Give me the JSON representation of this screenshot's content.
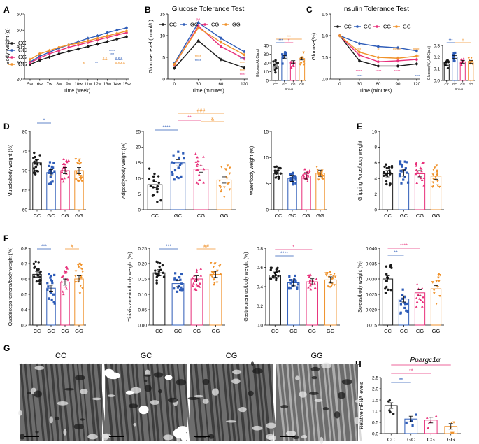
{
  "colors": {
    "CC": "#1a1a1a",
    "GC": "#2e5cb8",
    "CG": "#e8307a",
    "GG": "#f0922b"
  },
  "chart_data": [
    {
      "panel": "A",
      "type": "line",
      "title": "",
      "xlabel": "Time (week)",
      "ylabel": "Body weight (g)",
      "x": [
        "5w",
        "6w",
        "7w",
        "8w",
        "9w",
        "10w",
        "11w",
        "12w",
        "13w",
        "14w",
        "15w"
      ],
      "ylim": [
        20,
        60
      ],
      "yticks": [
        "20",
        "30",
        "40",
        "50",
        "60"
      ],
      "legend": [
        "CC",
        "GC",
        "CG",
        "GG"
      ],
      "series": [
        {
          "name": "CC",
          "values": [
            29,
            31.5,
            33.5,
            35.5,
            37,
            38.5,
            40,
            41.5,
            43,
            44.5,
            46
          ]
        },
        {
          "name": "GC",
          "values": [
            30.5,
            34,
            36.5,
            39,
            41,
            43,
            45,
            46.5,
            48.5,
            50,
            51.5
          ]
        },
        {
          "name": "CG",
          "values": [
            30,
            33,
            35.5,
            37.5,
            39.5,
            41,
            42.5,
            44,
            45.5,
            47,
            48.5
          ]
        },
        {
          "name": "GG",
          "values": [
            32,
            35.5,
            37.5,
            39.5,
            41,
            42,
            43.5,
            45,
            46.5,
            48,
            49.5
          ]
        }
      ],
      "annotations": [
        "****",
        "&",
        "&&&",
        "&&",
        "&&&&",
        "**",
        "***"
      ]
    },
    {
      "panel": "B",
      "type": "line",
      "title": "Glucose Tolerance Test",
      "xlabel": "Time (minutes)",
      "ylabel": "Glucose level (mmol/L)",
      "x": [
        "0",
        "30",
        "60",
        "120"
      ],
      "ylim": [
        0,
        15
      ],
      "yticks": [
        "0",
        "5",
        "10",
        "15"
      ],
      "legend": [
        "CC",
        "GC",
        "CG",
        "GG"
      ],
      "series": [
        {
          "name": "CC",
          "values": [
            2.5,
            8.8,
            4.5,
            2.6
          ]
        },
        {
          "name": "GC",
          "values": [
            3.6,
            13,
            9.4,
            6.3
          ]
        },
        {
          "name": "CG",
          "values": [
            3.2,
            12.2,
            7.5,
            4.7
          ]
        },
        {
          "name": "GG",
          "values": [
            3.4,
            11.8,
            8.5,
            5.6
          ]
        }
      ],
      "annotations": [
        "##",
        "****",
        "****",
        "****",
        "****",
        "****",
        "****"
      ]
    },
    {
      "panel": "B-inset",
      "type": "bar",
      "ylabel": "Glucose,AUC(a.u)",
      "xlabel": "Group",
      "categories": [
        "CC",
        "GC",
        "CG",
        "GG"
      ],
      "values": [
        16,
        27,
        21,
        25
      ],
      "ylim": [
        0,
        40
      ],
      "yticks": [
        "0",
        "10",
        "20",
        "30",
        "40"
      ],
      "annotations": [
        "***",
        "****",
        "#"
      ]
    },
    {
      "panel": "C",
      "type": "line",
      "title": "Insulin Tolerance Test",
      "xlabel": "Time (minutes)",
      "ylabel": "Glucose(%)",
      "x": [
        "0",
        "30",
        "60",
        "90",
        "120"
      ],
      "ylim": [
        0,
        1.5
      ],
      "yticks": [
        "0.0",
        "0.5",
        "1.0",
        "1.5"
      ],
      "legend": [
        "CC",
        "GC",
        "CG",
        "GG"
      ],
      "series": [
        {
          "name": "CC",
          "values": [
            1.0,
            0.42,
            0.3,
            0.3,
            0.35
          ]
        },
        {
          "name": "GC",
          "values": [
            1.0,
            0.82,
            0.75,
            0.72,
            0.65
          ]
        },
        {
          "name": "CG",
          "values": [
            1.0,
            0.55,
            0.4,
            0.42,
            0.45
          ]
        },
        {
          "name": "GG",
          "values": [
            1.0,
            0.62,
            0.5,
            0.48,
            0.53
          ]
        }
      ],
      "annotations": [
        "##",
        "#",
        "####",
        "###",
        "#",
        "****",
        "****",
        "****",
        "****",
        "***"
      ]
    },
    {
      "panel": "C-inset",
      "type": "bar",
      "ylabel": "Glucose(%),AUC(a.u)",
      "xlabel": "Group",
      "categories": [
        "CC",
        "GC",
        "CG",
        "GG"
      ],
      "values": [
        0.14,
        0.2,
        0.16,
        0.16
      ],
      "ylim": [
        0,
        0.3
      ],
      "yticks": [
        "0.0",
        "0.1",
        "0.2",
        "0.3"
      ],
      "annotations": [
        "***",
        "#"
      ]
    },
    {
      "panel": "D1",
      "type": "bar",
      "ylabel": "Muscle/body weight (%)",
      "categories": [
        "CC",
        "GC",
        "CG",
        "GG"
      ],
      "values": [
        72,
        69.5,
        70,
        70
      ],
      "ylim": [
        60,
        80
      ],
      "yticks": [
        "60",
        "65",
        "70",
        "75",
        "80"
      ],
      "annotations": [
        "*"
      ]
    },
    {
      "panel": "D2",
      "type": "bar",
      "ylabel": "Adiposity/body weight (%)",
      "categories": [
        "CC",
        "GC",
        "CG",
        "GG"
      ],
      "values": [
        8,
        15,
        13,
        9.5
      ],
      "ylim": [
        0,
        25
      ],
      "yticks": [
        "0",
        "5",
        "10",
        "15",
        "20",
        "25"
      ],
      "annotations": [
        "****",
        "**",
        "###",
        "&"
      ]
    },
    {
      "panel": "D3",
      "type": "bar",
      "ylabel": "Water/body weight (%)",
      "categories": [
        "CC",
        "GC",
        "CG",
        "GG"
      ],
      "values": [
        7,
        6,
        6.5,
        7
      ],
      "ylim": [
        0,
        15
      ],
      "yticks": [
        "0",
        "5",
        "10",
        "15"
      ],
      "annotations": []
    },
    {
      "panel": "E",
      "type": "bar",
      "ylabel": "Gripping Force/body weight",
      "categories": [
        "CC",
        "GC",
        "CG",
        "GG"
      ],
      "values": [
        4.6,
        4.7,
        4.6,
        4.3
      ],
      "ylim": [
        0,
        10
      ],
      "yticks": [
        "0",
        "2",
        "4",
        "6",
        "8",
        "10"
      ],
      "annotations": []
    },
    {
      "panel": "F1",
      "type": "bar",
      "ylabel": "Quadriceps femoris/body weight (%)",
      "categories": [
        "CC",
        "GC",
        "CG",
        "GG"
      ],
      "values": [
        0.63,
        0.54,
        0.58,
        0.6
      ],
      "ylim": [
        0.3,
        0.8
      ],
      "yticks": [
        "0.3",
        "0.4",
        "0.5",
        "0.6",
        "0.7",
        "0.8"
      ],
      "annotations": [
        "***",
        "#"
      ]
    },
    {
      "panel": "F2",
      "type": "bar",
      "ylabel": "Tibialis anterior/body weight (%)",
      "categories": [
        "CC",
        "GC",
        "CG",
        "GG"
      ],
      "values": [
        0.17,
        0.135,
        0.15,
        0.165
      ],
      "ylim": [
        0,
        0.25
      ],
      "yticks": [
        "0.00",
        "0.05",
        "0.10",
        "0.15",
        "0.20",
        "0.25"
      ],
      "annotations": [
        "***",
        "##"
      ]
    },
    {
      "panel": "F3",
      "type": "bar",
      "ylabel": "Gastrocnemius/body weight (%)",
      "categories": [
        "CC",
        "GC",
        "CG",
        "GG"
      ],
      "values": [
        0.52,
        0.44,
        0.45,
        0.47
      ],
      "ylim": [
        0,
        0.8
      ],
      "yticks": [
        "0.0",
        "0.2",
        "0.4",
        "0.6",
        "0.8"
      ],
      "annotations": [
        "*",
        "****"
      ]
    },
    {
      "panel": "F4",
      "type": "bar",
      "ylabel": "Soleus/body weight (%)",
      "categories": [
        "CC",
        "GC",
        "CG",
        "GG"
      ],
      "values": [
        0.03,
        0.0235,
        0.0255,
        0.0268
      ],
      "ylim": [
        0.015,
        0.04
      ],
      "yticks": [
        "0.015",
        "0.020",
        "0.025",
        "0.030",
        "0.035",
        "0.040"
      ],
      "annotations": [
        "****",
        "**"
      ]
    },
    {
      "panel": "H",
      "type": "bar",
      "title": "Ppargc1α",
      "ylabel": "Relative mRNA levels",
      "categories": [
        "CC",
        "GC",
        "CG",
        "GG"
      ],
      "values": [
        1.25,
        0.65,
        0.6,
        0.32
      ],
      "ylim": [
        0,
        2.5
      ],
      "yticks": [
        "0.0",
        "0.5",
        "1.0",
        "1.5",
        "2.0",
        "2.5"
      ],
      "annotations": [
        "**",
        "**",
        "****"
      ]
    }
  ],
  "panel_g": {
    "label": "G",
    "groups": [
      "CC",
      "GC",
      "CG",
      "GG"
    ]
  }
}
